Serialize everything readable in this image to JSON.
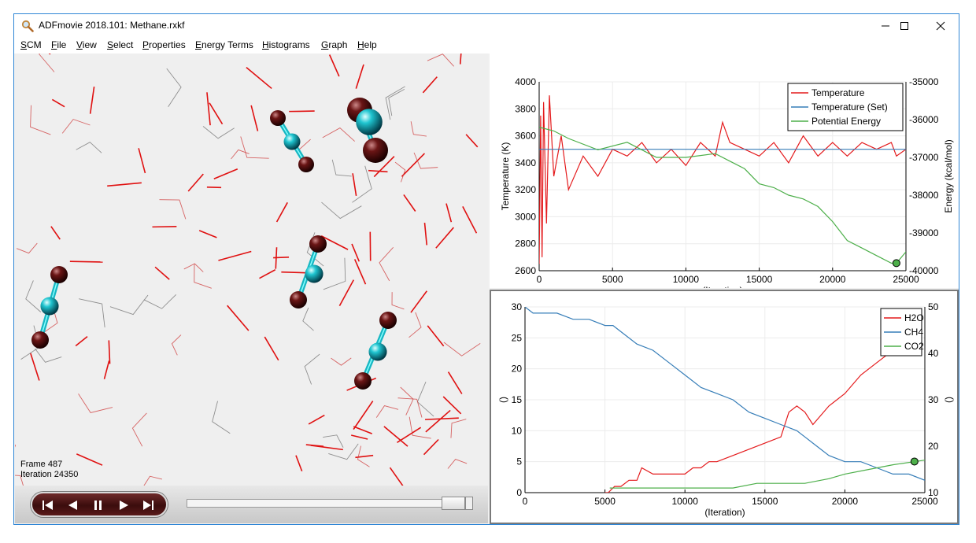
{
  "window": {
    "title": "ADFmovie 2018.101: Methane.rxkf",
    "app_icon": "magnifier-icon",
    "controls": [
      "minimize-icon",
      "maximize-icon",
      "close-icon"
    ]
  },
  "menu": [
    {
      "u": "S",
      "rest": "CM"
    },
    {
      "u": "F",
      "rest": "ile"
    },
    {
      "u": "V",
      "rest": "iew"
    },
    {
      "u": "S",
      "rest": "elect"
    },
    {
      "u": "P",
      "rest": "roperties"
    },
    {
      "u": "E",
      "rest": "nergy Terms"
    },
    {
      "u": "H",
      "rest": "istograms"
    },
    {
      "u": "G",
      "rest": "raph"
    },
    {
      "u": "H",
      "rest": "elp"
    }
  ],
  "viewer": {
    "frame_label": "Frame 487",
    "iteration_label": "Iteration 24350"
  },
  "player": {
    "buttons": [
      "skip-to-start-icon",
      "step-back-icon",
      "pause-icon",
      "play-icon",
      "skip-to-end-icon"
    ],
    "position": 0.974
  },
  "chart_data": [
    {
      "type": "line",
      "xlabel": "(Iteration)",
      "ylabel": "Temperature (K)",
      "ylabel_right": "Energy (kcal/mol)",
      "xlim": [
        0,
        25000
      ],
      "ylim": [
        2600,
        4000
      ],
      "ylim_right": [
        -40000,
        -35000
      ],
      "x_ticks": [
        "0",
        "5000",
        "10000",
        "15000",
        "20000",
        "25000"
      ],
      "y_ticks": [
        "2600",
        "2800",
        "3000",
        "3200",
        "3400",
        "3600",
        "3800",
        "4000"
      ],
      "y_ticks_right": [
        "-40000",
        "-39000",
        "-38000",
        "-37000",
        "-36000",
        "-35000"
      ],
      "grid": true,
      "legend_position": "top-right",
      "series": [
        {
          "name": "Temperature",
          "color": "#e41a1c",
          "axis": "left",
          "x": [
            0,
            100,
            200,
            300,
            500,
            700,
            1000,
            1500,
            2000,
            3000,
            4000,
            5000,
            6000,
            7000,
            8000,
            9000,
            10000,
            11000,
            12000,
            12500,
            13000,
            14000,
            15000,
            16000,
            17000,
            18000,
            19000,
            20000,
            21000,
            22000,
            23000,
            24000,
            24350,
            25000
          ],
          "values": [
            2650,
            3750,
            2700,
            3850,
            2950,
            3900,
            3300,
            3600,
            3200,
            3450,
            3300,
            3500,
            3450,
            3550,
            3400,
            3500,
            3380,
            3550,
            3450,
            3700,
            3550,
            3500,
            3450,
            3550,
            3400,
            3600,
            3450,
            3550,
            3450,
            3550,
            3500,
            3550,
            3450,
            3500
          ]
        },
        {
          "name": "Temperature (Set)",
          "color": "#377eb8",
          "axis": "left",
          "x": [
            0,
            25000
          ],
          "values": [
            3500,
            3500
          ]
        },
        {
          "name": "Potential Energy",
          "color": "#4daf4a",
          "axis": "right",
          "x": [
            0,
            1000,
            2000,
            4000,
            6000,
            8000,
            10000,
            12000,
            13000,
            14000,
            15000,
            16000,
            17000,
            18000,
            19000,
            20000,
            21000,
            22000,
            23000,
            24000,
            24350,
            25000
          ],
          "values": [
            -36200,
            -36300,
            -36500,
            -36800,
            -36600,
            -37000,
            -37000,
            -36900,
            -37100,
            -37300,
            -37700,
            -37800,
            -38000,
            -38100,
            -38300,
            -38700,
            -39200,
            -39400,
            -39600,
            -39800,
            -39800,
            -39500
          ]
        }
      ],
      "marker": {
        "x": 24350,
        "value": -39800,
        "axis": "right",
        "color": "#4daf4a"
      }
    },
    {
      "type": "line",
      "xlabel": "(Iteration)",
      "ylabel": "()",
      "ylabel_right": "()",
      "xlim": [
        0,
        25000
      ],
      "ylim": [
        0,
        30
      ],
      "ylim_right": [
        10,
        50
      ],
      "x_ticks": [
        "0",
        "5000",
        "10000",
        "15000",
        "20000",
        "25000"
      ],
      "y_ticks": [
        "0",
        "5",
        "10",
        "15",
        "20",
        "25",
        "30"
      ],
      "y_ticks_right": [
        "10",
        "20",
        "30",
        "40",
        "50"
      ],
      "grid": true,
      "legend_position": "top-right",
      "series": [
        {
          "name": "H2O",
          "color": "#e41a1c",
          "axis": "left",
          "x": [
            5000,
            5200,
            5600,
            6000,
            6500,
            7000,
            7300,
            8000,
            9000,
            10000,
            10500,
            11000,
            11500,
            12000,
            13000,
            14000,
            15000,
            16000,
            16500,
            17000,
            17500,
            18000,
            19000,
            20000,
            21000,
            22000,
            23000,
            24000
          ],
          "values": [
            0,
            0,
            1,
            1,
            2,
            2,
            4,
            3,
            3,
            3,
            4,
            4,
            5,
            5,
            6,
            7,
            8,
            9,
            13,
            14,
            13,
            11,
            14,
            16,
            19,
            21,
            23,
            24
          ]
        },
        {
          "name": "CH4",
          "color": "#377eb8",
          "axis": "left",
          "x": [
            0,
            500,
            2000,
            3000,
            4000,
            5000,
            5500,
            6000,
            7000,
            8000,
            9000,
            10000,
            11000,
            12000,
            13000,
            14000,
            15000,
            16000,
            17000,
            17500,
            18000,
            19000,
            20000,
            21000,
            22000,
            23000,
            24000,
            25000
          ],
          "values": [
            30,
            29,
            29,
            28,
            28,
            27,
            27,
            26,
            24,
            23,
            21,
            19,
            17,
            16,
            15,
            13,
            12,
            11,
            10,
            9,
            8,
            6,
            5,
            5,
            4,
            3,
            3,
            2
          ]
        },
        {
          "name": "CO2",
          "color": "#4daf4a",
          "axis": "right",
          "x": [
            5300,
            13000,
            14500,
            17500,
            19000,
            20000,
            21500,
            23000,
            25000
          ],
          "values": [
            11,
            11,
            12,
            12,
            13,
            14,
            15,
            16,
            17
          ]
        }
      ],
      "marker": {
        "x": 24350,
        "value": 16.7,
        "axis": "right",
        "color": "#4daf4a"
      }
    }
  ]
}
